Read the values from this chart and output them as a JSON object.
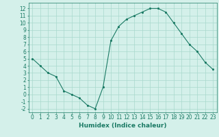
{
  "x": [
    0,
    1,
    2,
    3,
    4,
    5,
    6,
    7,
    8,
    9,
    10,
    11,
    12,
    13,
    14,
    15,
    16,
    17,
    18,
    19,
    20,
    21,
    22,
    23
  ],
  "y": [
    5,
    4,
    3,
    2.5,
    0.5,
    0,
    -0.5,
    -1.5,
    -2,
    1,
    7.5,
    9.5,
    10.5,
    11,
    11.5,
    12,
    12,
    11.5,
    10,
    8.5,
    7,
    6,
    4.5,
    3.5
  ],
  "line_color": "#1a7a64",
  "marker_color": "#1a7a64",
  "bg_color": "#d4f0ea",
  "grid_color": "#a8d8cc",
  "xlabel": "Humidex (Indice chaleur)",
  "xlim": [
    -0.5,
    23.5
  ],
  "ylim": [
    -2.5,
    12.8
  ],
  "yticks": [
    -2,
    -1,
    0,
    1,
    2,
    3,
    4,
    5,
    6,
    7,
    8,
    9,
    10,
    11,
    12
  ],
  "xticks": [
    0,
    1,
    2,
    3,
    4,
    5,
    6,
    7,
    8,
    9,
    10,
    11,
    12,
    13,
    14,
    15,
    16,
    17,
    18,
    19,
    20,
    21,
    22,
    23
  ],
  "tick_fontsize": 5.5,
  "label_fontsize": 6.5
}
